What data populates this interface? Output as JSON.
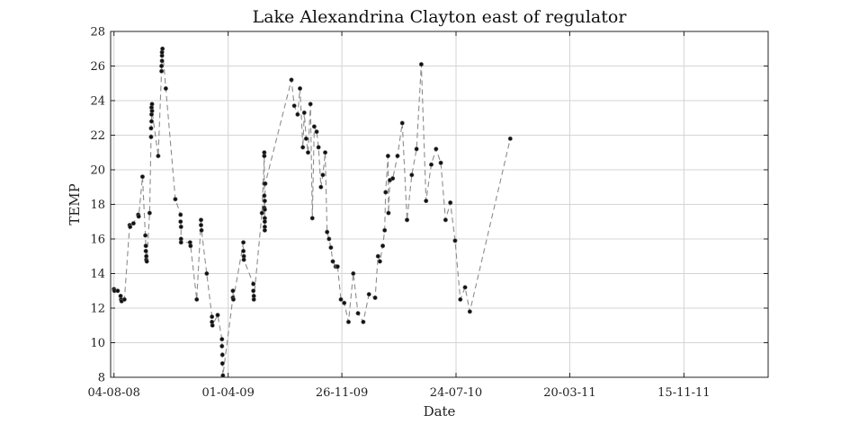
{
  "chart_data": {
    "type": "scatter",
    "title": "Lake Alexandrina Clayton east of regulator",
    "xlabel": "Date",
    "ylabel": "TEMP",
    "ylim": [
      8,
      28
    ],
    "xlim": [
      "2008-07-28",
      "2012-05-10"
    ],
    "yticks": [
      8,
      10,
      12,
      14,
      16,
      18,
      20,
      22,
      24,
      26,
      28
    ],
    "xticks": [
      {
        "date": "2008-08-04",
        "label": "04-08-08"
      },
      {
        "date": "2009-04-01",
        "label": "01-04-09"
      },
      {
        "date": "2009-11-26",
        "label": "26-11-09"
      },
      {
        "date": "2010-07-24",
        "label": "24-07-10"
      },
      {
        "date": "2011-03-20",
        "label": "20-03-11"
      },
      {
        "date": "2011-11-15",
        "label": "15-11-11"
      }
    ],
    "grid": true,
    "line_style": "dashed",
    "line_color": "#8c8c8c",
    "marker_color": "#111111",
    "series": [
      {
        "points": [
          [
            "2008-08-04",
            13.1
          ],
          [
            "2008-08-05",
            13.0
          ],
          [
            "2008-08-12",
            13.0
          ],
          [
            "2008-08-18",
            12.7
          ],
          [
            "2008-08-19",
            12.5
          ],
          [
            "2008-08-20",
            12.4
          ],
          [
            "2008-08-26",
            12.5
          ],
          [
            "2008-09-06",
            16.8
          ],
          [
            "2008-09-07",
            16.7
          ],
          [
            "2008-09-14",
            16.9
          ],
          [
            "2008-09-24",
            17.4
          ],
          [
            "2008-09-25",
            17.3
          ],
          [
            "2008-10-03",
            19.6
          ],
          [
            "2008-10-09",
            16.2
          ],
          [
            "2008-10-10",
            15.6
          ],
          [
            "2008-10-10",
            15.3
          ],
          [
            "2008-10-11",
            15.0
          ],
          [
            "2008-10-11",
            14.8
          ],
          [
            "2008-10-12",
            14.7
          ],
          [
            "2008-10-18",
            17.5
          ],
          [
            "2008-10-21",
            21.9
          ],
          [
            "2008-10-21",
            22.4
          ],
          [
            "2008-10-22",
            22.8
          ],
          [
            "2008-10-22",
            23.2
          ],
          [
            "2008-10-22",
            23.6
          ],
          [
            "2008-10-23",
            23.8
          ],
          [
            "2008-10-23",
            23.4
          ],
          [
            "2008-11-05",
            20.8
          ],
          [
            "2008-11-12",
            25.7
          ],
          [
            "2008-11-12",
            26.0
          ],
          [
            "2008-11-13",
            26.3
          ],
          [
            "2008-11-13",
            26.6
          ],
          [
            "2008-11-13",
            26.8
          ],
          [
            "2008-11-14",
            27.0
          ],
          [
            "2008-11-21",
            24.7
          ],
          [
            "2008-12-11",
            18.3
          ],
          [
            "2008-12-22",
            17.4
          ],
          [
            "2008-12-22",
            17.0
          ],
          [
            "2008-12-23",
            16.7
          ],
          [
            "2008-12-23",
            16.0
          ],
          [
            "2008-12-23",
            15.8
          ],
          [
            "2009-01-11",
            15.8
          ],
          [
            "2009-01-12",
            15.6
          ],
          [
            "2009-01-25",
            12.5
          ],
          [
            "2009-02-03",
            17.1
          ],
          [
            "2009-02-03",
            16.8
          ],
          [
            "2009-02-04",
            16.5
          ],
          [
            "2009-02-15",
            14.0
          ],
          [
            "2009-02-26",
            11.5
          ],
          [
            "2009-02-26",
            11.2
          ],
          [
            "2009-02-27",
            11.0
          ],
          [
            "2009-03-10",
            11.6
          ],
          [
            "2009-03-19",
            10.2
          ],
          [
            "2009-03-19",
            9.8
          ],
          [
            "2009-03-20",
            9.3
          ],
          [
            "2009-03-20",
            8.8
          ],
          [
            "2009-03-21",
            8.1
          ],
          [
            "2009-04-11",
            12.6
          ],
          [
            "2009-04-11",
            13.0
          ],
          [
            "2009-04-12",
            12.5
          ],
          [
            "2009-05-03",
            15.8
          ],
          [
            "2009-05-03",
            15.3
          ],
          [
            "2009-05-04",
            15.0
          ],
          [
            "2009-05-04",
            14.8
          ],
          [
            "2009-05-24",
            13.4
          ],
          [
            "2009-05-24",
            13.0
          ],
          [
            "2009-05-25",
            12.7
          ],
          [
            "2009-05-25",
            12.5
          ],
          [
            "2009-06-11",
            17.5
          ],
          [
            "2009-06-16",
            20.8
          ],
          [
            "2009-06-16",
            21.0
          ],
          [
            "2009-06-16",
            19.2
          ],
          [
            "2009-06-16",
            18.5
          ],
          [
            "2009-06-16",
            17.8
          ],
          [
            "2009-06-17",
            17.2
          ],
          [
            "2009-06-17",
            16.7
          ],
          [
            "2009-06-17",
            16.5
          ],
          [
            "2009-06-17",
            17.0
          ],
          [
            "2009-06-17",
            17.7
          ],
          [
            "2009-06-17",
            18.2
          ],
          [
            "2009-06-18",
            19.2
          ],
          [
            "2009-08-12",
            25.2
          ],
          [
            "2009-08-18",
            23.7
          ],
          [
            "2009-08-25",
            23.2
          ],
          [
            "2009-08-30",
            24.7
          ],
          [
            "2009-09-05",
            21.3
          ],
          [
            "2009-09-08",
            23.3
          ],
          [
            "2009-09-12",
            21.8
          ],
          [
            "2009-09-16",
            21.0
          ],
          [
            "2009-09-21",
            23.8
          ],
          [
            "2009-09-25",
            17.2
          ],
          [
            "2009-09-29",
            22.5
          ],
          [
            "2009-10-04",
            22.2
          ],
          [
            "2009-10-08",
            21.3
          ],
          [
            "2009-10-13",
            19.0
          ],
          [
            "2009-10-17",
            19.7
          ],
          [
            "2009-10-22",
            21.0
          ],
          [
            "2009-10-26",
            16.4
          ],
          [
            "2009-10-30",
            16.0
          ],
          [
            "2009-11-03",
            15.5
          ],
          [
            "2009-11-07",
            14.7
          ],
          [
            "2009-11-13",
            14.4
          ],
          [
            "2009-11-15",
            14.4
          ],
          [
            "2009-11-17",
            14.4
          ],
          [
            "2009-11-24",
            12.5
          ],
          [
            "2009-12-01",
            12.3
          ],
          [
            "2009-12-10",
            11.2
          ],
          [
            "2009-12-20",
            14.0
          ],
          [
            "2009-12-30",
            11.7
          ],
          [
            "2010-01-10",
            11.2
          ],
          [
            "2010-01-22",
            12.8
          ],
          [
            "2010-02-04",
            12.6
          ],
          [
            "2010-02-10",
            15.0
          ],
          [
            "2010-02-14",
            14.7
          ],
          [
            "2010-02-20",
            15.6
          ],
          [
            "2010-02-24",
            16.5
          ],
          [
            "2010-02-26",
            18.7
          ],
          [
            "2010-03-03",
            20.8
          ],
          [
            "2010-03-04",
            17.5
          ],
          [
            "2010-03-07",
            19.4
          ],
          [
            "2010-03-13",
            19.5
          ],
          [
            "2010-03-23",
            20.8
          ],
          [
            "2010-04-02",
            22.7
          ],
          [
            "2010-04-12",
            17.1
          ],
          [
            "2010-04-22",
            19.7
          ],
          [
            "2010-05-02",
            21.2
          ],
          [
            "2010-05-12",
            26.1
          ],
          [
            "2010-05-22",
            18.2
          ],
          [
            "2010-06-02",
            20.3
          ],
          [
            "2010-06-12",
            21.2
          ],
          [
            "2010-06-22",
            20.4
          ],
          [
            "2010-07-02",
            17.1
          ],
          [
            "2010-07-12",
            18.1
          ],
          [
            "2010-07-22",
            15.9
          ],
          [
            "2010-08-02",
            12.5
          ],
          [
            "2010-08-12",
            13.2
          ],
          [
            "2010-08-22",
            11.8
          ],
          [
            "2010-11-15",
            21.8
          ]
        ]
      }
    ]
  }
}
